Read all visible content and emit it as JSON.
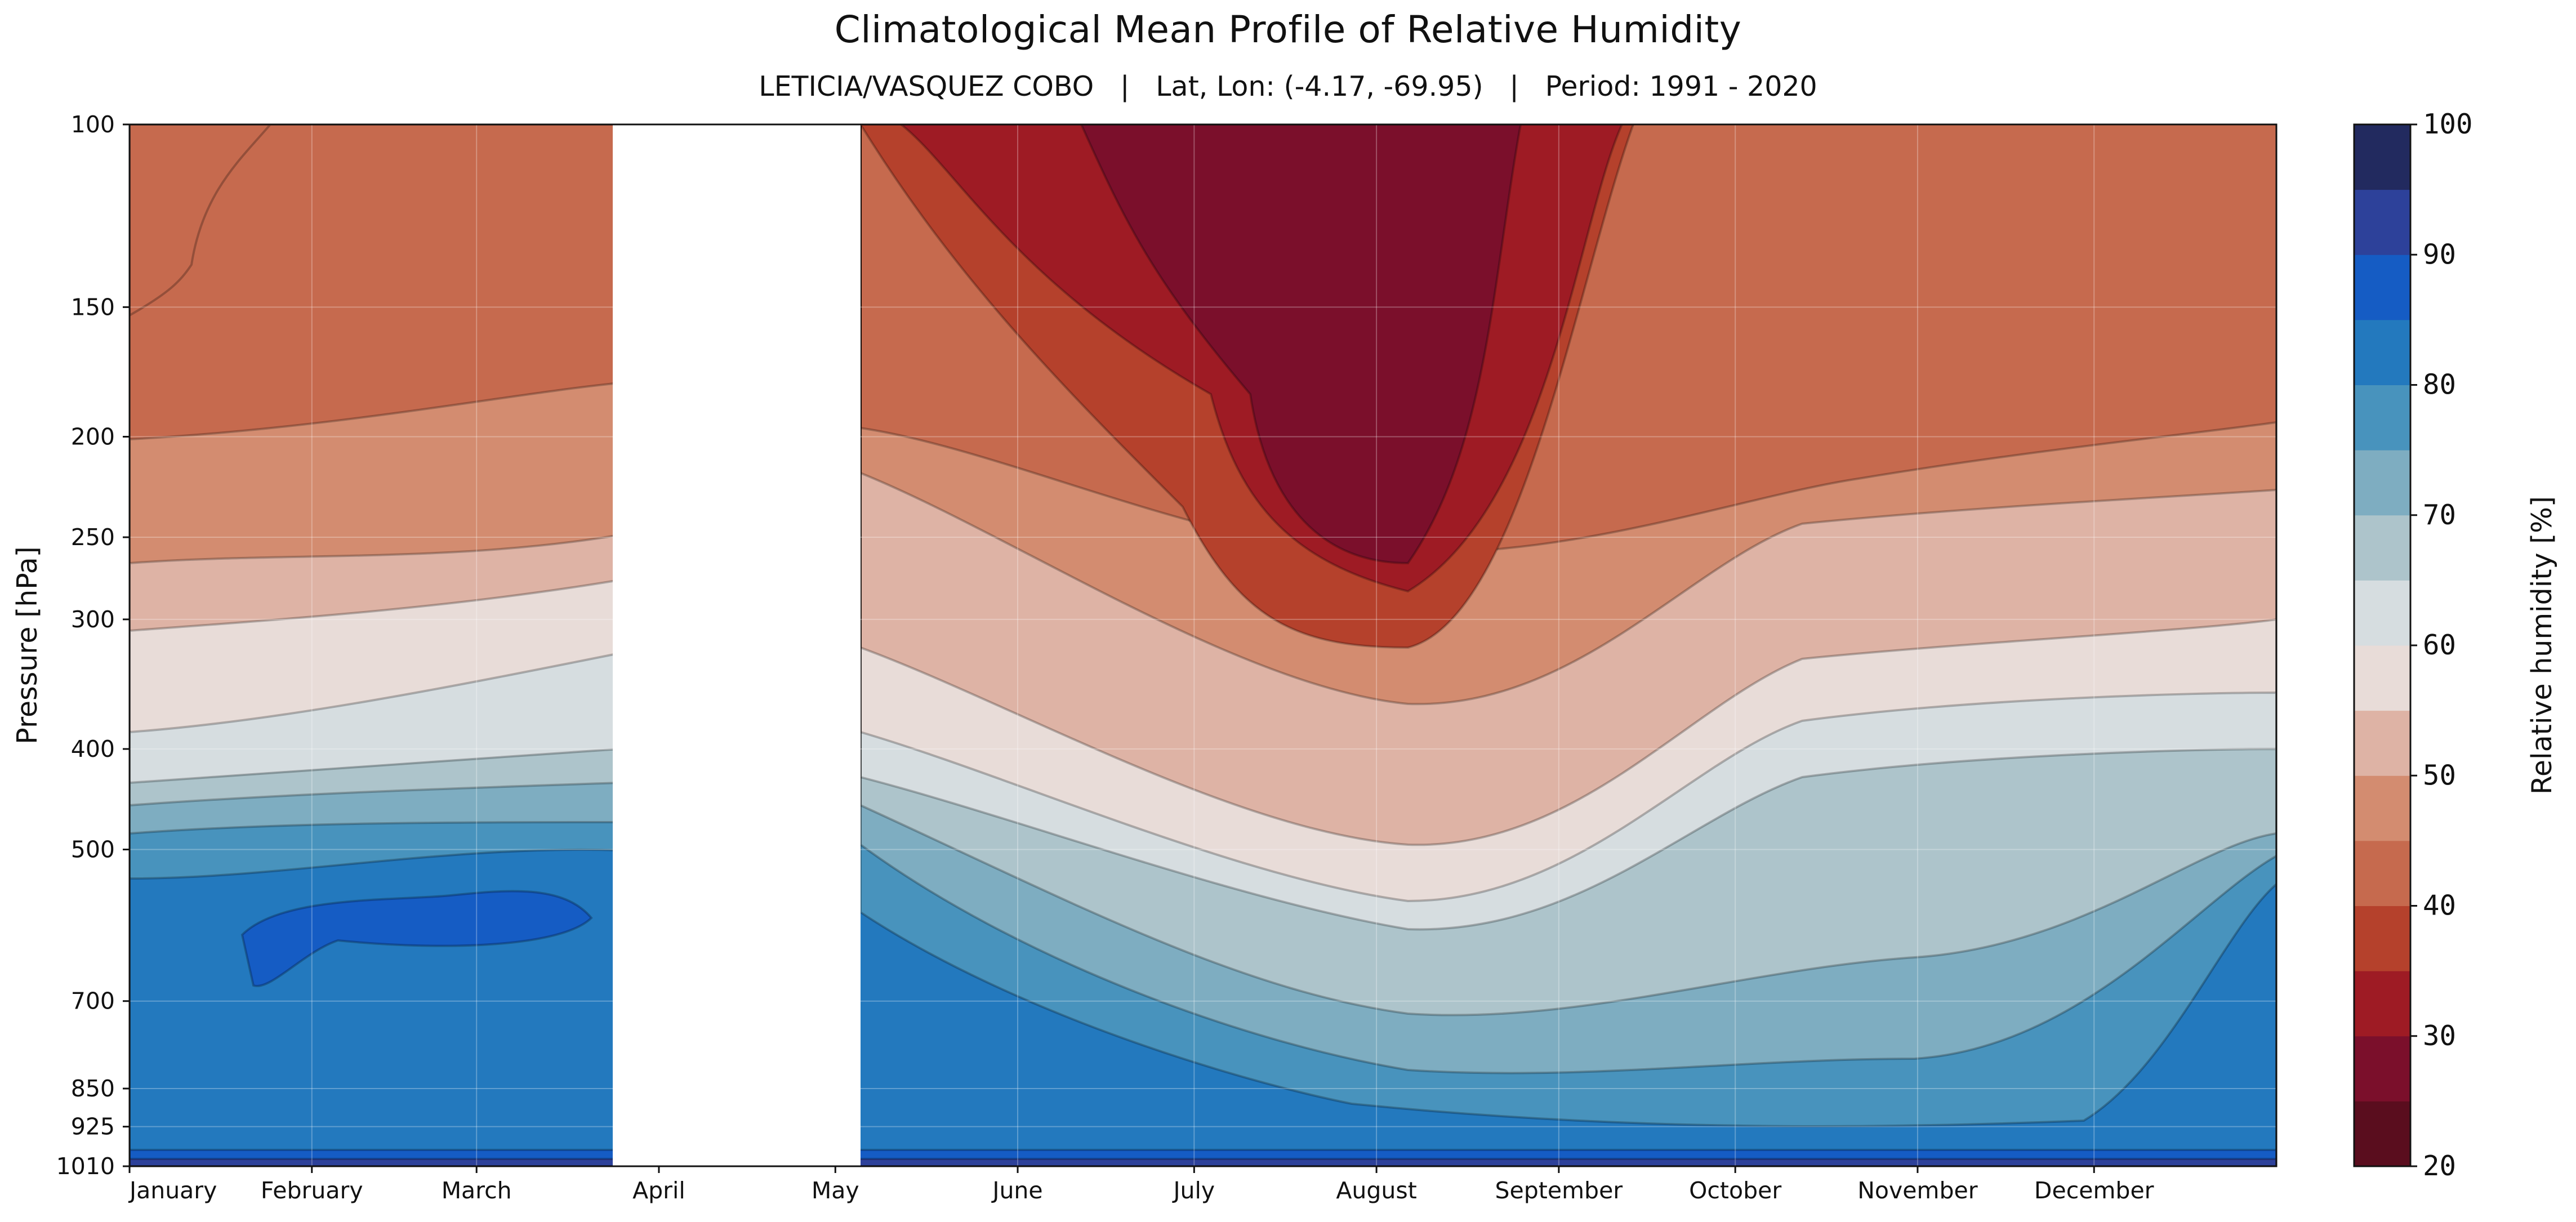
{
  "title": "Climatological Mean Profile of Relative Humidity",
  "subtitle": {
    "station": "LETICIA/VASQUEZ COBO",
    "separator": "|",
    "latlon": "Lat, Lon: (-4.17, -69.95)",
    "period": "Period: 1991 - 2020"
  },
  "chart_data": {
    "type": "heatmap",
    "subtype": "filled-contour",
    "xlabel": "",
    "ylabel": "Pressure [hPa]",
    "colorbar_label": "Relative humidity [%]",
    "y_scale": "log (inverted)",
    "y_range": [
      1010,
      100
    ],
    "y_ticks": [
      "100",
      "150",
      "200",
      "250",
      "300",
      "400",
      "500",
      "700",
      "850",
      "925",
      "1010"
    ],
    "x_ticks": [
      "January",
      "February",
      "March",
      "April",
      "May",
      "June",
      "July",
      "August",
      "September",
      "October",
      "November",
      "December"
    ],
    "grid": true,
    "missing_period": "late March - end of April",
    "colorbar": {
      "range": [
        20,
        100
      ],
      "ticks": [
        "20",
        "30",
        "40",
        "50",
        "60",
        "70",
        "80",
        "90",
        "100"
      ],
      "levels": [
        20,
        25,
        30,
        35,
        40,
        45,
        50,
        55,
        60,
        65,
        70,
        75,
        80,
        85,
        90,
        95,
        100
      ],
      "colors": [
        "#5a0d1e",
        "#7b0f2b",
        "#9e1b24",
        "#b5412c",
        "#c66a4e",
        "#d38c70",
        "#deb3a5",
        "#e8dcd8",
        "#d6dde0",
        "#adc4cb",
        "#7eadc1",
        "#4893bd",
        "#2379be",
        "#155cc4",
        "#2d419a",
        "#222a5f"
      ]
    },
    "profiles": [
      {
        "month": "January",
        "contours_hpa": {
          "60": 460,
          "70": 500,
          "80": 540
        },
        "upper_rh": 45
      },
      {
        "month": "February",
        "contours_hpa": {
          "60": 440,
          "70": 490,
          "80": 530
        },
        "upper_rh": 40
      },
      {
        "month": "March",
        "contours_hpa": {
          "60": 400,
          "70": 470,
          "80": 510
        },
        "upper_rh": 40
      },
      {
        "month": "June",
        "contours_hpa": {
          "60": 450,
          "70": 520,
          "80": 600
        },
        "upper_rh": 30
      },
      {
        "month": "July",
        "contours_hpa": {
          "60": 560,
          "70": 700,
          "80": 820
        },
        "upper_rh": 25
      },
      {
        "month": "August",
        "contours_hpa": {
          "60": 620,
          "70": 760,
          "80": 880
        },
        "upper_rh": 25
      },
      {
        "month": "September",
        "contours_hpa": {
          "60": 560,
          "70": 690,
          "80": 860
        },
        "upper_rh": 35
      },
      {
        "month": "October",
        "contours_hpa": {
          "60": 450,
          "70": 520,
          "80": 780
        },
        "upper_rh": 40
      },
      {
        "month": "November",
        "contours_hpa": {
          "60": 400,
          "70": 470,
          "80": 680
        },
        "upper_rh": 40
      },
      {
        "month": "December",
        "contours_hpa": {
          "60": 440,
          "70": 480,
          "80": 560
        },
        "upper_rh": 40
      }
    ]
  }
}
